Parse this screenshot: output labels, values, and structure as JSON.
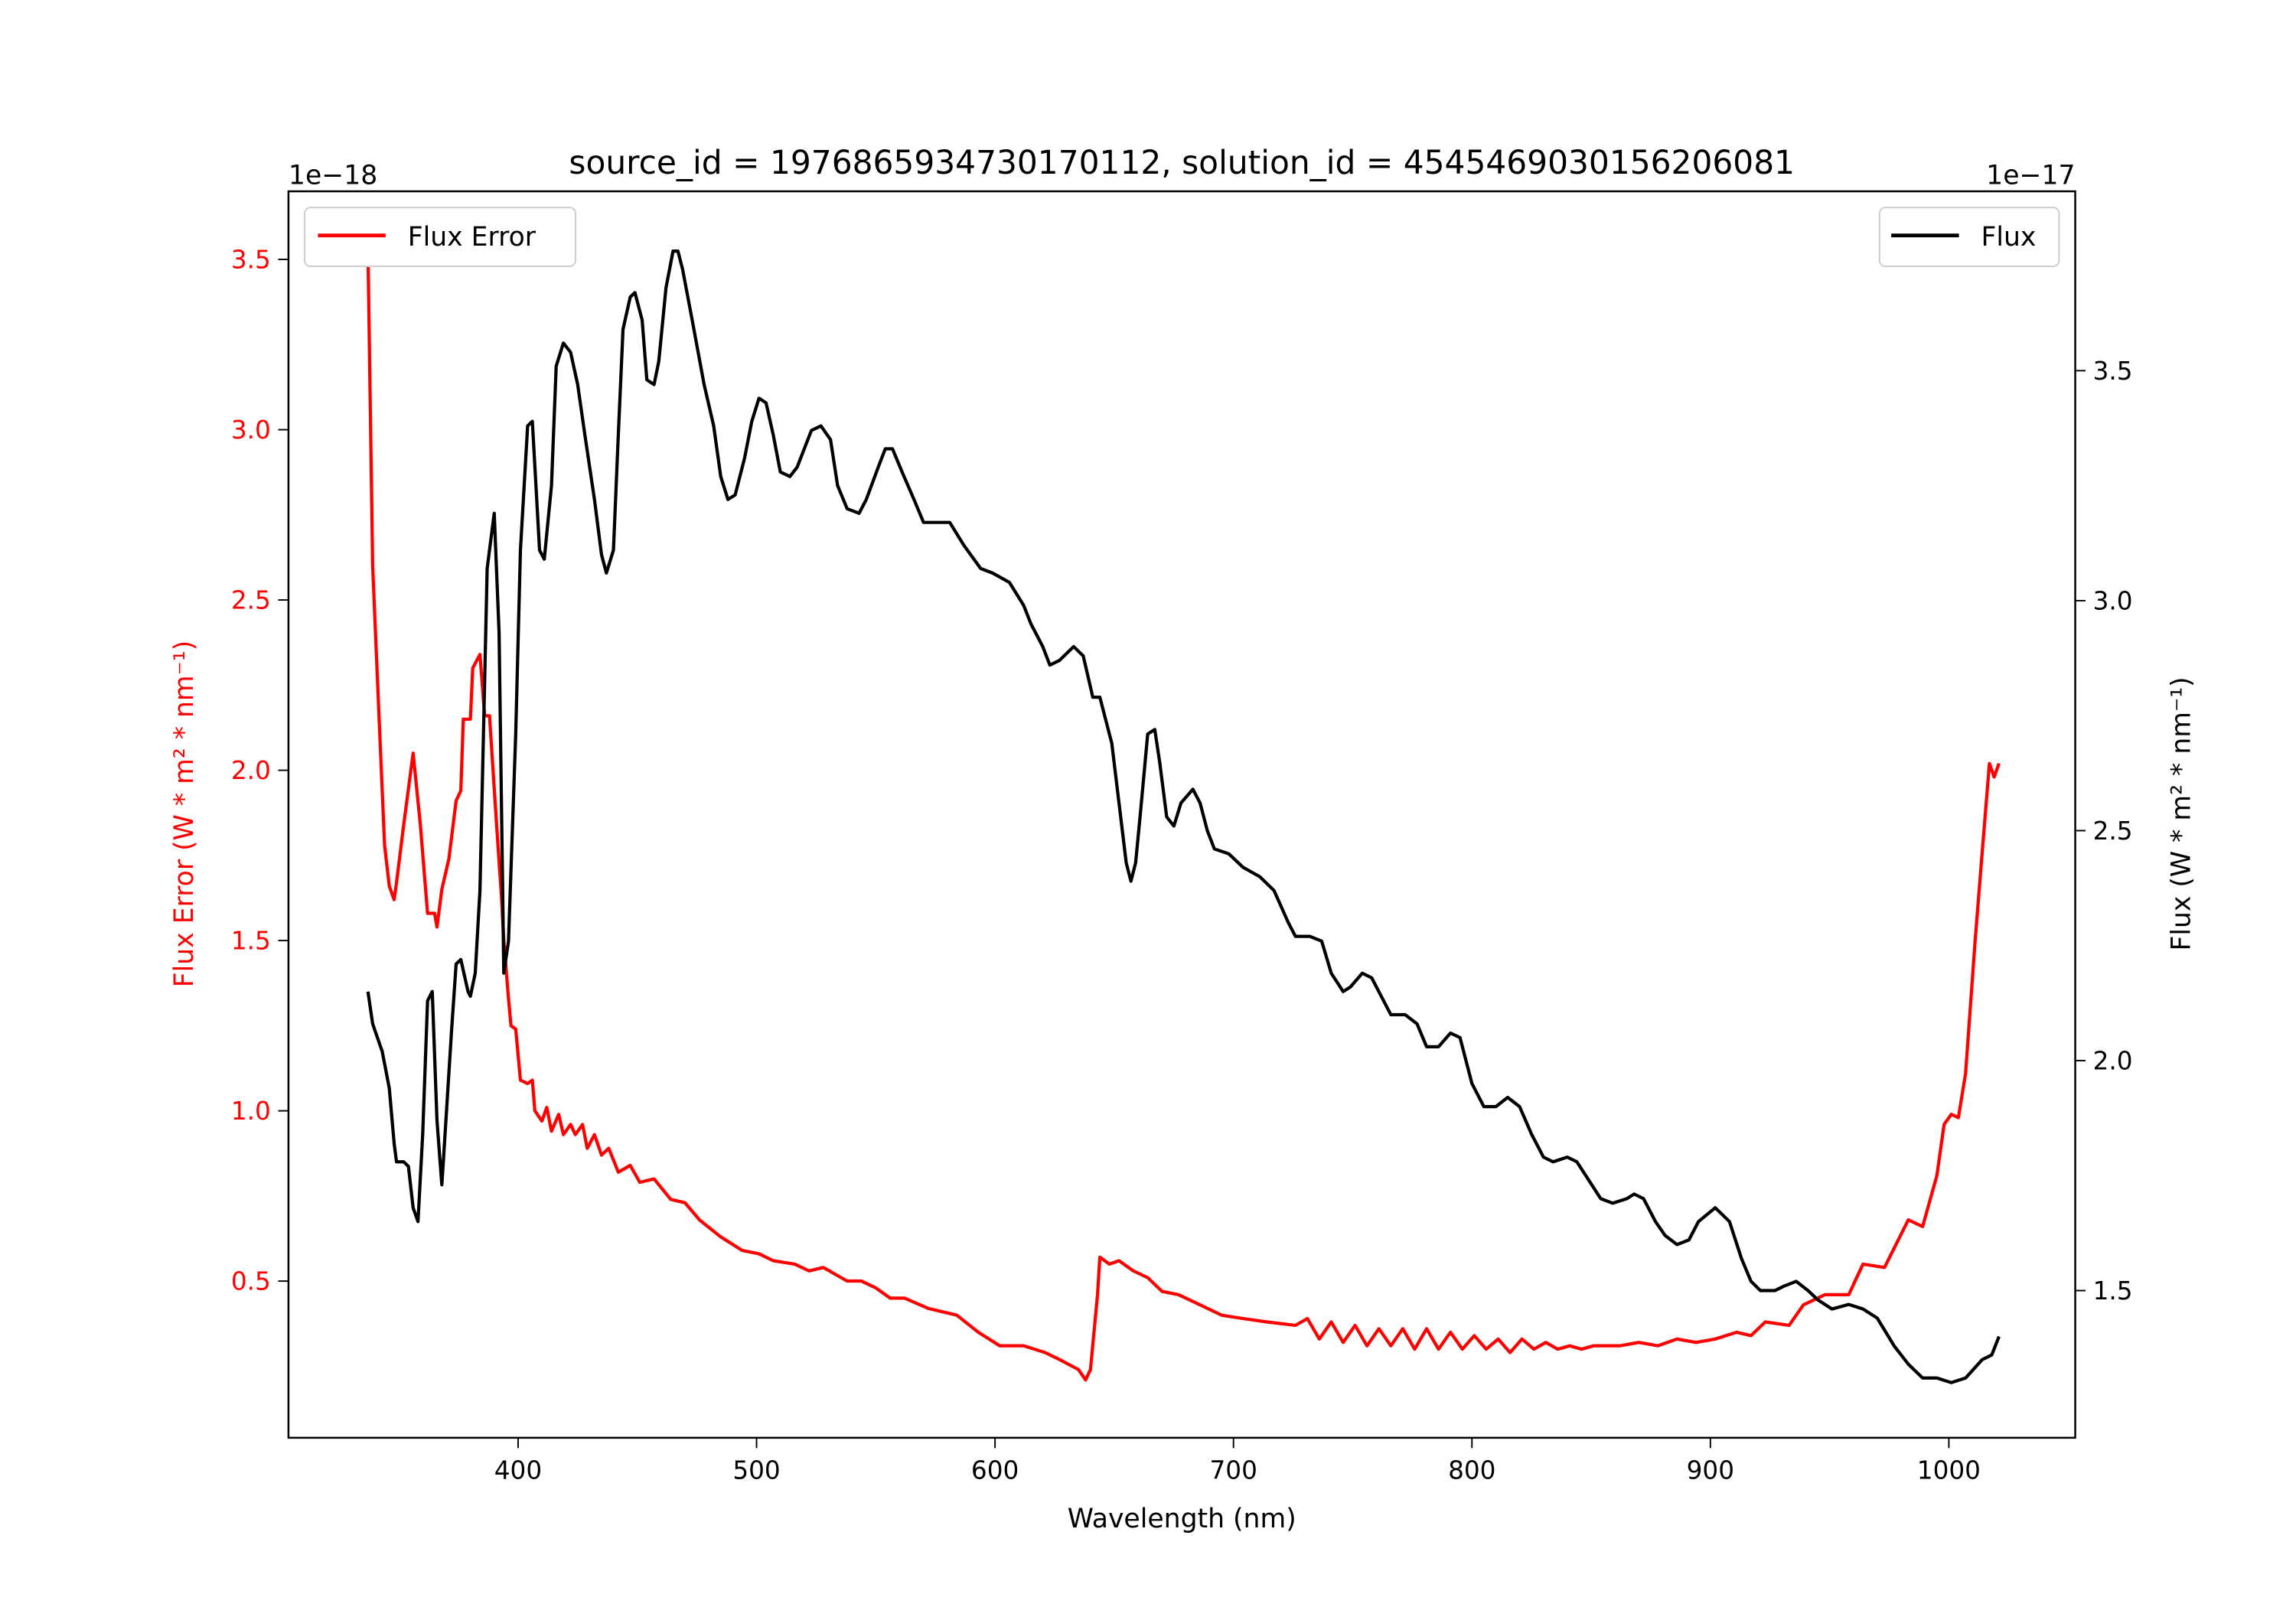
{
  "chart_data": {
    "type": "line",
    "title": "source_id = 1976865934730170112, solution_id = 4545469030156206081",
    "xlabel": "Wavelength (nm)",
    "ylabel_left": "Flux Error (W * m² * nm⁻¹)",
    "ylabel_right": "Flux (W * m² * nm⁻¹)",
    "left_offset_label": "1e−18",
    "right_offset_label": "1e−17",
    "xlim": [
      303.7,
      1053
    ],
    "ylim_left": [
      0.04,
      3.7
    ],
    "ylim_right": [
      1.18,
      3.89
    ],
    "xticks": [
      "400",
      "500",
      "600",
      "700",
      "800",
      "900",
      "1000"
    ],
    "xtick_values": [
      400,
      500,
      600,
      700,
      800,
      900,
      1000
    ],
    "yticks_left": [
      "0.5",
      "1.0",
      "1.5",
      "2.0",
      "2.5",
      "3.0",
      "3.5"
    ],
    "ytick_values_left": [
      0.5,
      1.0,
      1.5,
      2.0,
      2.5,
      3.0,
      3.5
    ],
    "yticks_right": [
      "1.5",
      "2.0",
      "2.5",
      "3.0",
      "3.5"
    ],
    "ytick_values_right": [
      1.5,
      2.0,
      2.5,
      3.0,
      3.5
    ],
    "legend_left": {
      "label": "Flux Error",
      "placement": "upper-left"
    },
    "legend_right": {
      "label": "Flux",
      "placement": "upper-right"
    },
    "colors": {
      "flux_error": "#ff0000",
      "flux": "#000000"
    },
    "series": [
      {
        "name": "Flux Error",
        "axis": "left",
        "units": "1e-18",
        "x": [
          337,
          339,
          342,
          344,
          346,
          348,
          349,
          352,
          356,
          359,
          362,
          365,
          366,
          368,
          371,
          374,
          376,
          377,
          380,
          381,
          384,
          386,
          388,
          391,
          393,
          394,
          396,
          397,
          399,
          401,
          404,
          406,
          407,
          410,
          412,
          414,
          417,
          419,
          422,
          424,
          427,
          429,
          432,
          435,
          438,
          442,
          447,
          451,
          457,
          464,
          470,
          476,
          485,
          494,
          501,
          507,
          516,
          522,
          528,
          538,
          544,
          550,
          556,
          562,
          572,
          584,
          593,
          602,
          612,
          621,
          627,
          635,
          638,
          640,
          643,
          644,
          648,
          652,
          658,
          664,
          670,
          677,
          686,
          695,
          704,
          714,
          726,
          731,
          736,
          741,
          746,
          751,
          756,
          761,
          766,
          771,
          776,
          781,
          786,
          791,
          796,
          801,
          806,
          811,
          816,
          821,
          826,
          831,
          836,
          841,
          846,
          851,
          856,
          862,
          870,
          878,
          886,
          894,
          902,
          911,
          917,
          923,
          933,
          939,
          948,
          958,
          964,
          973,
          983,
          989,
          995,
          998,
          1001,
          1004,
          1007,
          1011,
          1014,
          1017,
          1019,
          1021
        ],
        "y": [
          3.53,
          2.6,
          2.1,
          1.78,
          1.66,
          1.62,
          1.67,
          1.84,
          2.05,
          1.84,
          1.58,
          1.58,
          1.54,
          1.65,
          1.74,
          1.91,
          1.94,
          2.15,
          2.15,
          2.3,
          2.34,
          2.16,
          2.16,
          1.84,
          1.63,
          1.5,
          1.33,
          1.25,
          1.24,
          1.09,
          1.08,
          1.09,
          1.0,
          0.97,
          1.01,
          0.94,
          0.99,
          0.93,
          0.96,
          0.93,
          0.96,
          0.89,
          0.93,
          0.87,
          0.89,
          0.82,
          0.84,
          0.79,
          0.8,
          0.74,
          0.73,
          0.68,
          0.63,
          0.59,
          0.58,
          0.56,
          0.55,
          0.53,
          0.54,
          0.5,
          0.5,
          0.48,
          0.45,
          0.45,
          0.42,
          0.4,
          0.35,
          0.31,
          0.31,
          0.29,
          0.27,
          0.24,
          0.21,
          0.24,
          0.46,
          0.57,
          0.55,
          0.56,
          0.53,
          0.51,
          0.47,
          0.46,
          0.43,
          0.4,
          0.39,
          0.38,
          0.37,
          0.39,
          0.33,
          0.38,
          0.32,
          0.37,
          0.31,
          0.36,
          0.31,
          0.36,
          0.3,
          0.36,
          0.3,
          0.35,
          0.3,
          0.34,
          0.3,
          0.33,
          0.29,
          0.33,
          0.3,
          0.32,
          0.3,
          0.31,
          0.3,
          0.31,
          0.31,
          0.31,
          0.32,
          0.31,
          0.33,
          0.32,
          0.33,
          0.35,
          0.34,
          0.38,
          0.37,
          0.43,
          0.46,
          0.46,
          0.55,
          0.54,
          0.68,
          0.66,
          0.81,
          0.96,
          0.99,
          0.98,
          1.11,
          1.5,
          1.76,
          2.02,
          1.98,
          2.02
        ]
      },
      {
        "name": "Flux",
        "axis": "right",
        "units": "1e-17",
        "x": [
          337,
          339,
          343,
          346,
          348,
          349,
          352,
          354,
          356,
          358,
          360,
          362,
          364,
          366,
          368,
          369,
          372,
          374,
          376,
          379,
          380,
          382,
          384,
          387,
          390,
          392,
          394,
          396,
          399,
          401,
          404,
          406,
          409,
          411,
          414,
          416,
          419,
          422,
          425,
          428,
          432,
          435,
          437,
          440,
          442,
          444,
          447,
          449,
          452,
          454,
          457,
          459,
          462,
          465,
          467,
          469,
          473,
          478,
          482,
          485,
          488,
          491,
          495,
          498,
          501,
          504,
          507,
          510,
          514,
          517,
          523,
          527,
          531,
          534,
          538,
          543,
          546,
          551,
          554,
          557,
          561,
          566,
          570,
          575,
          581,
          587,
          594,
          599,
          606,
          612,
          615,
          620,
          623,
          627,
          633,
          637,
          641,
          644,
          649,
          652,
          655,
          657,
          659,
          661,
          664,
          667,
          669,
          672,
          675,
          678,
          683,
          686,
          689,
          692,
          698,
          704,
          711,
          717,
          723,
          726,
          732,
          737,
          741,
          746,
          749,
          754,
          758,
          762,
          766,
          772,
          777,
          781,
          786,
          791,
          795,
          800,
          805,
          810,
          815,
          820,
          825,
          830,
          834,
          840,
          844,
          849,
          854,
          859,
          865,
          868,
          872,
          877,
          881,
          886,
          891,
          895,
          902,
          908,
          913,
          917,
          921,
          927,
          931,
          936,
          941,
          945,
          951,
          958,
          964,
          970,
          977,
          983,
          989,
          995,
          1001,
          1007,
          1014,
          1018,
          1021
        ],
        "y": [
          2.15,
          2.08,
          2.02,
          1.94,
          1.82,
          1.78,
          1.78,
          1.77,
          1.68,
          1.65,
          1.84,
          2.13,
          2.15,
          1.87,
          1.73,
          1.81,
          2.06,
          2.21,
          2.22,
          2.15,
          2.14,
          2.19,
          2.37,
          3.07,
          3.19,
          2.93,
          2.19,
          2.26,
          2.71,
          3.11,
          3.38,
          3.39,
          3.11,
          3.09,
          3.25,
          3.51,
          3.56,
          3.54,
          3.47,
          3.36,
          3.22,
          3.1,
          3.06,
          3.11,
          3.36,
          3.59,
          3.66,
          3.67,
          3.61,
          3.48,
          3.47,
          3.52,
          3.68,
          3.76,
          3.76,
          3.72,
          3.61,
          3.47,
          3.38,
          3.27,
          3.22,
          3.23,
          3.31,
          3.39,
          3.44,
          3.43,
          3.36,
          3.28,
          3.27,
          3.29,
          3.37,
          3.38,
          3.35,
          3.25,
          3.2,
          3.19,
          3.22,
          3.29,
          3.33,
          3.33,
          3.28,
          3.22,
          3.17,
          3.17,
          3.17,
          3.12,
          3.07,
          3.06,
          3.04,
          2.99,
          2.95,
          2.9,
          2.86,
          2.87,
          2.9,
          2.88,
          2.79,
          2.79,
          2.69,
          2.56,
          2.43,
          2.39,
          2.43,
          2.54,
          2.71,
          2.72,
          2.65,
          2.53,
          2.51,
          2.56,
          2.59,
          2.56,
          2.5,
          2.46,
          2.45,
          2.42,
          2.4,
          2.37,
          2.3,
          2.27,
          2.27,
          2.26,
          2.19,
          2.15,
          2.16,
          2.19,
          2.18,
          2.14,
          2.1,
          2.1,
          2.08,
          2.03,
          2.03,
          2.06,
          2.05,
          1.95,
          1.9,
          1.9,
          1.92,
          1.9,
          1.84,
          1.79,
          1.78,
          1.79,
          1.78,
          1.74,
          1.7,
          1.69,
          1.7,
          1.71,
          1.7,
          1.65,
          1.62,
          1.6,
          1.61,
          1.65,
          1.68,
          1.65,
          1.57,
          1.52,
          1.5,
          1.5,
          1.51,
          1.52,
          1.5,
          1.48,
          1.46,
          1.47,
          1.46,
          1.44,
          1.38,
          1.34,
          1.31,
          1.31,
          1.3,
          1.31,
          1.35,
          1.36,
          1.4
        ]
      }
    ]
  }
}
